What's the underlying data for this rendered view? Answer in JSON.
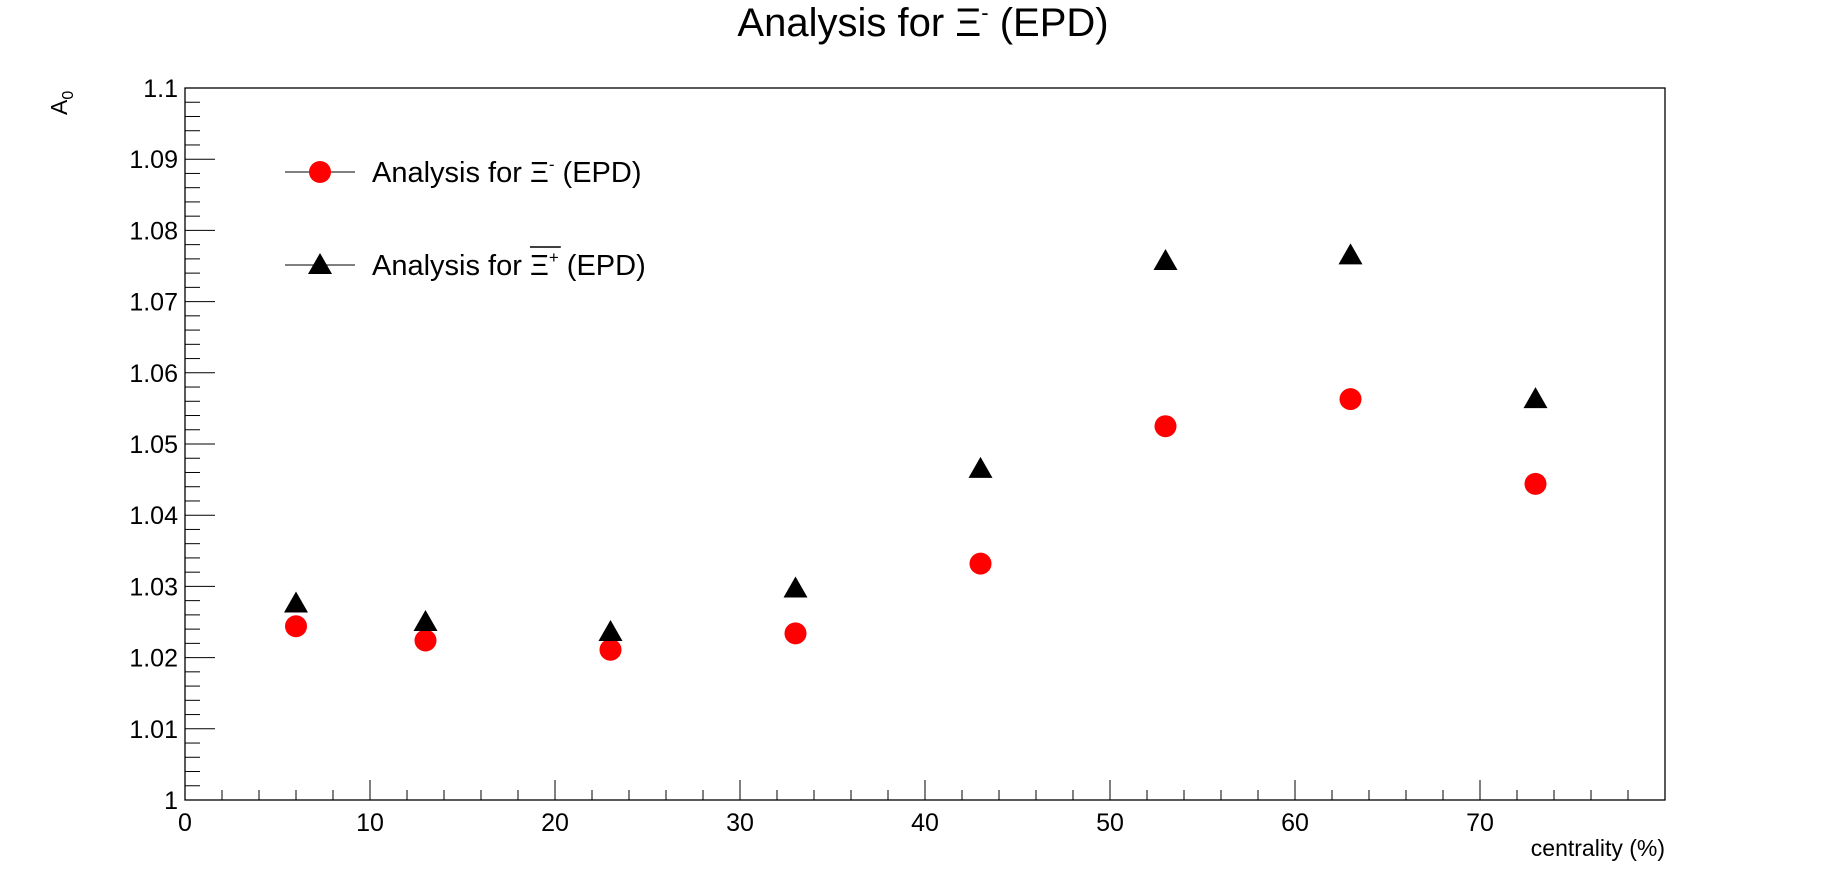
{
  "chart_data": {
    "type": "scatter",
    "title": {
      "prefix": "Analysis for ",
      "symbol": "Ξ",
      "sup": "-",
      "suffix": " (EPD)"
    },
    "xlabel": "centrality (%)",
    "ylabel": {
      "base": "A",
      "sub": "0"
    },
    "xlim": [
      0,
      80
    ],
    "ylim": [
      1.0,
      1.1
    ],
    "xticks": [
      "0",
      "10",
      "20",
      "30",
      "40",
      "50",
      "60",
      "70"
    ],
    "yticks": [
      "1",
      "1.01",
      "1.02",
      "1.03",
      "1.04",
      "1.05",
      "1.06",
      "1.07",
      "1.08",
      "1.09",
      "1.1"
    ],
    "grid": false,
    "legend_position": "top-left",
    "series": [
      {
        "name": {
          "prefix": "Analysis for ",
          "symbol": "Ξ",
          "sup": "-",
          "suffix": " (EPD)"
        },
        "marker": "circle",
        "color": "#ff0000",
        "x": [
          6,
          13,
          23,
          33,
          43,
          53,
          63,
          73
        ],
        "y": [
          1.0244,
          1.0224,
          1.0211,
          1.0234,
          1.0332,
          1.0525,
          1.0563,
          1.0444
        ]
      },
      {
        "name": {
          "prefix": "Analysis for ",
          "symbol": "Ξ",
          "sup": "+",
          "suffix": " (EPD)",
          "overline": true
        },
        "marker": "triangle",
        "color": "#000000",
        "x": [
          6,
          13,
          23,
          33,
          43,
          53,
          63,
          73
        ],
        "y": [
          1.0276,
          1.025,
          1.0236,
          1.0297,
          1.0465,
          1.0757,
          1.0765,
          1.0563
        ]
      }
    ]
  }
}
